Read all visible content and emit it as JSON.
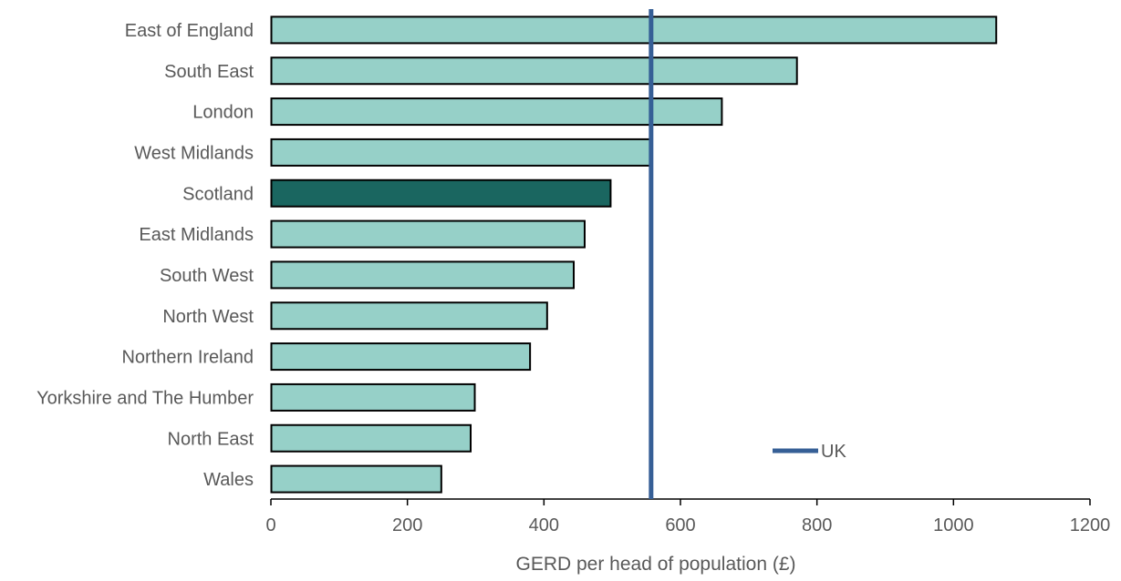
{
  "chart_data": {
    "type": "bar",
    "orientation": "horizontal",
    "title": "",
    "xlabel": "GERD per head of population (£)",
    "ylabel": "",
    "xlim": [
      0,
      1200
    ],
    "xticks": [
      0,
      200,
      400,
      600,
      800,
      1000,
      1200
    ],
    "grid": false,
    "categories": [
      "East of England",
      "South East",
      "London",
      "West Midlands",
      "Scotland",
      "East Midlands",
      "South West",
      "North West",
      "Northern Ireland",
      "Yorkshire and The Humber",
      "North East",
      "Wales"
    ],
    "values": [
      1062,
      770,
      660,
      555,
      497,
      459,
      443,
      404,
      379,
      298,
      292,
      249
    ],
    "highlight_category": "Scotland",
    "reference_line": {
      "name": "UK",
      "value": 557
    },
    "legend_position": "bottom-right",
    "colors": {
      "bar": "#96d0c8",
      "highlight": "#1a6660",
      "bar_stroke": "#000000",
      "reference": "#365f96",
      "axis": "#000000",
      "text": "#595959"
    }
  }
}
